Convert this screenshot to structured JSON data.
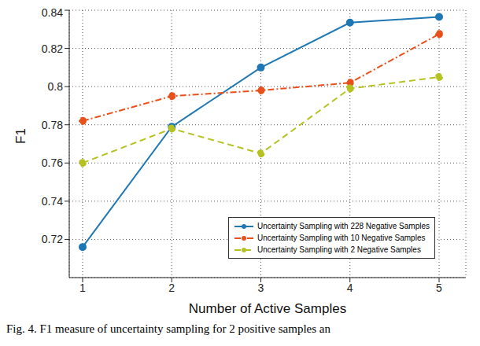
{
  "chart_data": {
    "type": "line",
    "x_label": "Number of Active Samples",
    "y_label": "F1",
    "annotations": [
      "Fig. 4. F1 measure of uncertainty sampling for 2 positive samples an"
    ],
    "x": [
      1,
      2,
      3,
      4,
      5
    ],
    "xlim": [
      0.85,
      5.3
    ],
    "xticks": [
      1,
      2,
      3,
      4,
      5
    ],
    "ylim": [
      0.7,
      0.84
    ],
    "yticks": [
      0.72,
      0.74,
      0.76,
      0.78,
      0.8,
      0.82,
      0.84
    ],
    "grid": true,
    "legend": "lower right",
    "series": [
      {
        "name": "Uncertainty Sampling with 228 Negative Samples",
        "color": "#1f77b4",
        "marker": "circle",
        "line_style": "solid",
        "values": [
          0.716,
          0.779,
          0.81,
          0.8335,
          0.8365
        ]
      },
      {
        "name": "Uncertainty Sampling with 10 Negative Samples",
        "color": "#e8501c",
        "marker": "circle",
        "line_style": "dashdot",
        "values": [
          0.782,
          0.795,
          0.798,
          0.802,
          0.8275
        ]
      },
      {
        "name": "Uncertainty Sampling with 2 Negative Samples",
        "color": "#b5c21f",
        "marker": "circle",
        "line_style": "dashed",
        "values": [
          0.76,
          0.778,
          0.765,
          0.799,
          0.805
        ]
      }
    ]
  }
}
